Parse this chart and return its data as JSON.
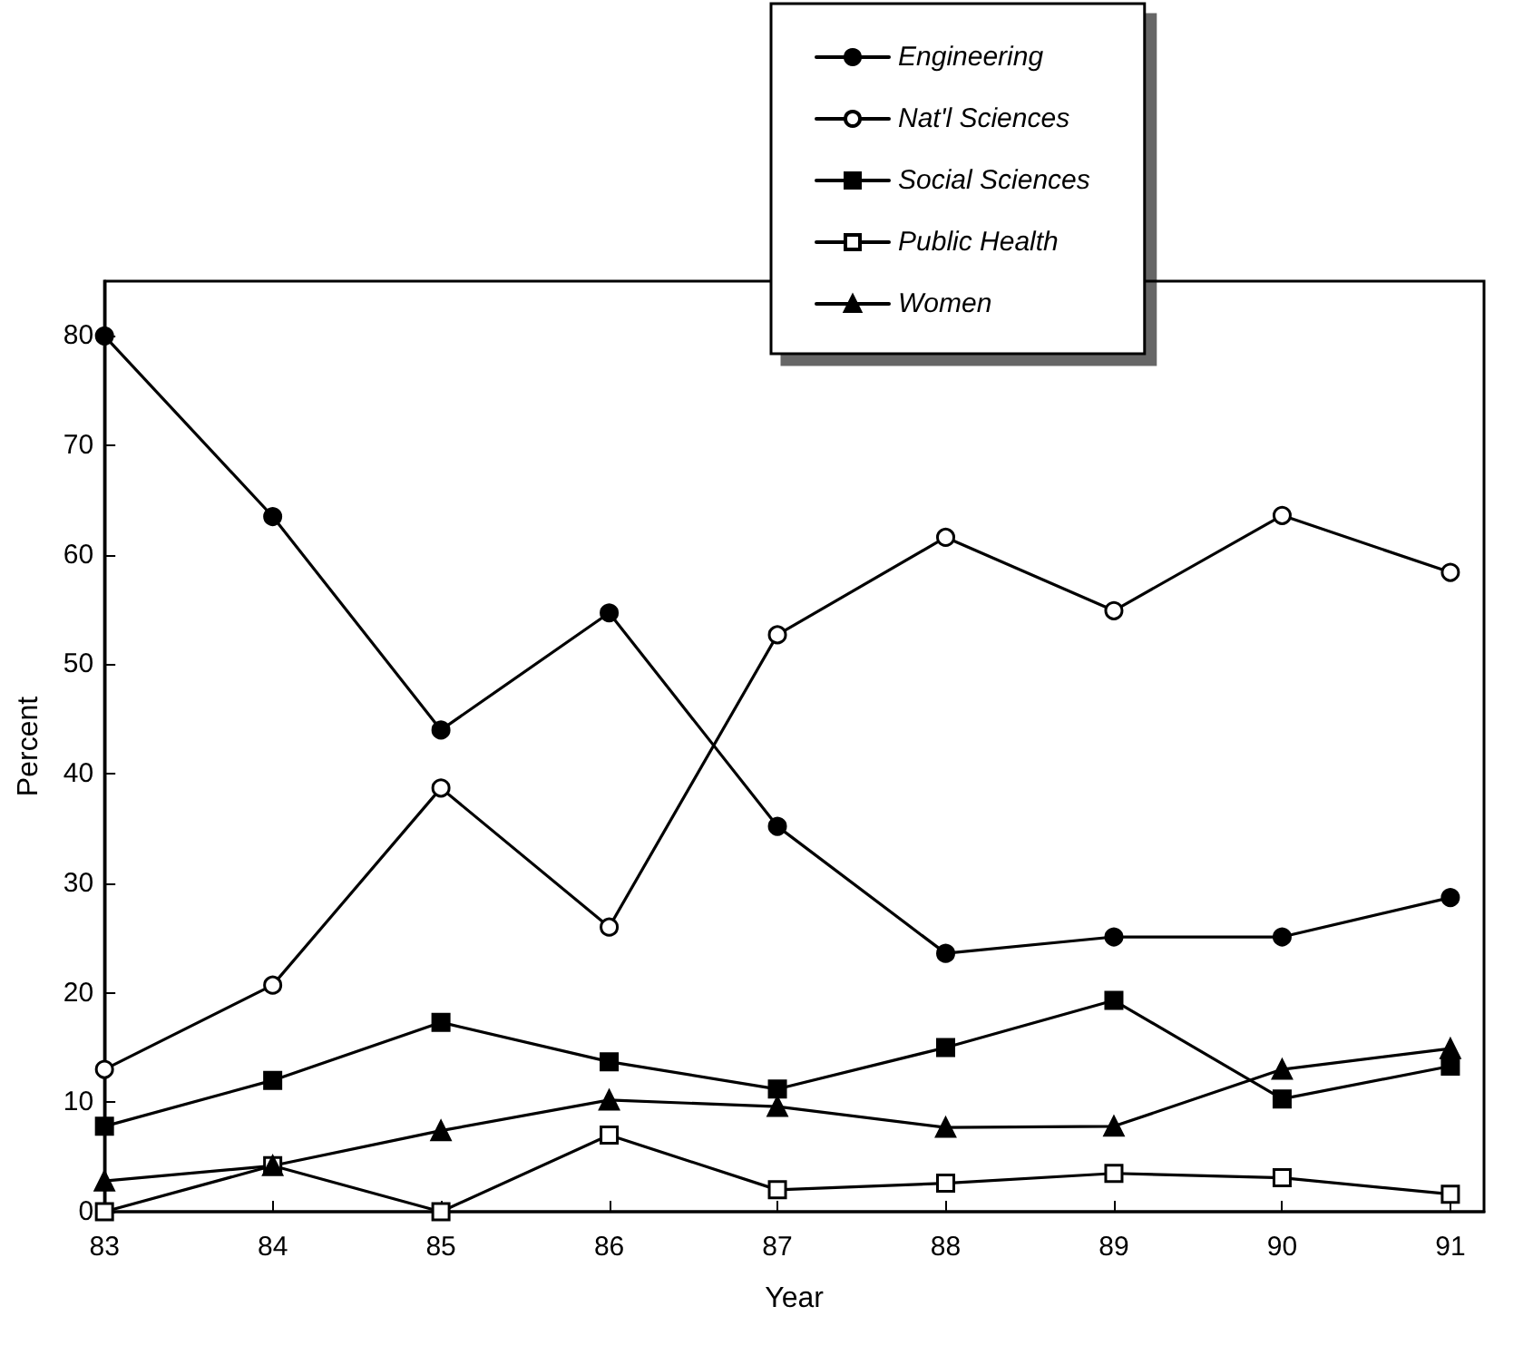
{
  "chart_data": {
    "type": "line",
    "xlabel": "Year",
    "ylabel": "Percent",
    "x": [
      83,
      84,
      85,
      86,
      87,
      88,
      89,
      90,
      91
    ],
    "xlim": [
      83,
      91.2
    ],
    "xticks": [
      83,
      84,
      85,
      86,
      87,
      88,
      89,
      90,
      91
    ],
    "ylim": [
      0,
      85
    ],
    "yticks": [
      0,
      10,
      20,
      30,
      40,
      50,
      60,
      70,
      80
    ],
    "grid": false,
    "legend": "top",
    "line_style": "solid",
    "series": [
      {
        "name": "Engineering",
        "color": "#000000",
        "marker": "circle",
        "values": [
          80,
          63.5,
          44,
          54.7,
          35.2,
          23.6,
          25.1,
          25.1,
          28.7
        ]
      },
      {
        "name": "Nat'l Sciences",
        "color": "#000000",
        "marker": "circle",
        "values": [
          13,
          20.7,
          38.7,
          26,
          52.7,
          61.6,
          54.9,
          63.6,
          58.4
        ]
      },
      {
        "name": "Social Sciences",
        "color": "#000000",
        "marker": "square",
        "values": [
          7.8,
          12,
          17.3,
          13.7,
          11.2,
          15,
          19.3,
          10.3,
          13.3
        ]
      },
      {
        "name": "Public Health",
        "color": "#000000",
        "marker": "square",
        "values": [
          0,
          4.2,
          0,
          7,
          2,
          2.6,
          3.5,
          3.1,
          1.6
        ]
      },
      {
        "name": "Women",
        "color": "#000000",
        "marker": "triangle",
        "values": [
          2.8,
          4.2,
          7.4,
          10.2,
          9.6,
          7.7,
          7.8,
          13,
          14.9
        ]
      }
    ]
  }
}
